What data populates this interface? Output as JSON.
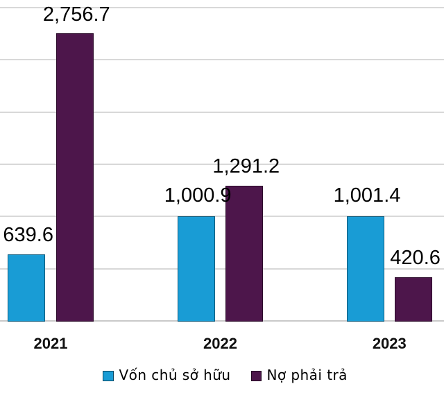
{
  "chart_data": {
    "type": "bar",
    "title": "",
    "xlabel": "",
    "ylabel": "",
    "categories": [
      "2021",
      "2022",
      "2023"
    ],
    "series": [
      {
        "name": "Vốn chủ sở hữu",
        "color": "#199cd5",
        "values": [
          639.6,
          1000.9,
          1001.4
        ],
        "value_labels": [
          "639.6",
          "1,000.9",
          "1,001.4"
        ]
      },
      {
        "name": "Nợ phải trả",
        "color": "#4d164b",
        "values": [
          2756.7,
          1291.2,
          420.6
        ],
        "value_labels": [
          "2,756.7",
          "1,291.2",
          "420.6"
        ]
      }
    ],
    "ylim": [
      0,
      3000
    ],
    "gridline_step": 500,
    "grid": true,
    "gridline_color": "#d8d8d8",
    "axis_line_color": "#c9c9c9",
    "background_color": "#ffffff",
    "legend_position": "bottom"
  }
}
